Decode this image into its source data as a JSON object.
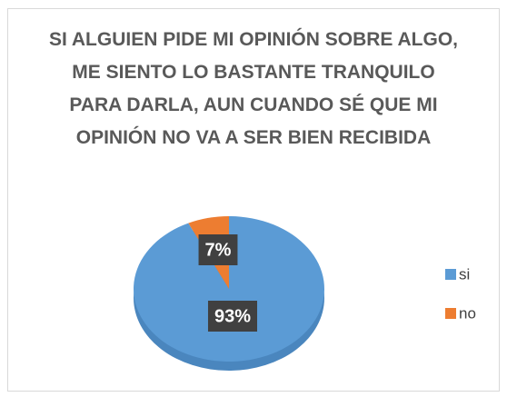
{
  "chart_data": {
    "type": "pie",
    "title": "SI ALGUIEN PIDE MI OPINIÓN SOBRE ALGO, ME SIENTO LO BASTANTE TRANQUILO PARA DARLA, AUN CUANDO SÉ QUE MI OPINIÓN NO VA A SER BIEN RECIBIDA",
    "categories": [
      "si",
      "no"
    ],
    "values": [
      93,
      7
    ],
    "value_labels": [
      "93%",
      "7%"
    ],
    "colors": [
      "#5b9bd5",
      "#ed7d31"
    ],
    "legend": "right"
  }
}
